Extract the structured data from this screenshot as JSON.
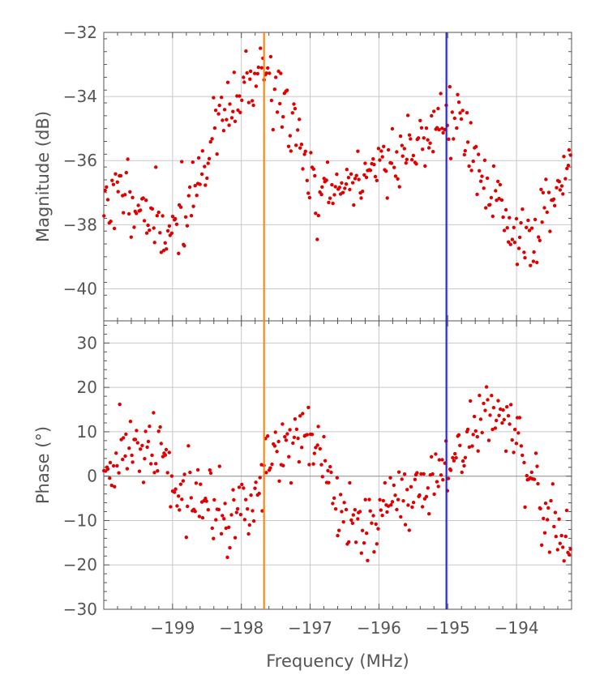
{
  "chart_data": {
    "type": "scatter",
    "xlabel": "Frequency (MHz)",
    "xlim": [
      -200,
      -193.2
    ],
    "x_ticks": [
      -199,
      -198,
      -197,
      -196,
      -195,
      -194
    ],
    "x_tick_labels": [
      "−199",
      "−198",
      "−197",
      "−196",
      "−195",
      "−194"
    ],
    "marker_lines": [
      {
        "x": -197.67,
        "color": "#ff8000"
      },
      {
        "x": -195.02,
        "color": "#2020cc"
      }
    ],
    "point_color": "#e00000",
    "grid": true,
    "panels": [
      {
        "name": "magnitude",
        "ylabel": "Magnitude (dB)",
        "ylim": [
          -41,
          -32
        ],
        "y_ticks": [
          -40,
          -38,
          -36,
          -34,
          -32
        ],
        "y_tick_labels": [
          "−40",
          "−38",
          "−36",
          "−34",
          "−32"
        ],
        "trend": {
          "x": [
            -200,
            -199.6,
            -199.2,
            -198.8,
            -198.4,
            -198.0,
            -197.7,
            -197.4,
            -197.1,
            -196.9,
            -196.5,
            -196.0,
            -195.5,
            -195.2,
            -195.0,
            -194.8,
            -194.5,
            -194.1,
            -193.8,
            -193.5,
            -193.2
          ],
          "y": [
            -37.2,
            -37.0,
            -38.3,
            -37.6,
            -35.2,
            -34.0,
            -33.0,
            -34.2,
            -35.8,
            -37.2,
            -36.8,
            -36.1,
            -35.6,
            -35.0,
            -34.6,
            -34.9,
            -36.5,
            -38.2,
            -38.5,
            -37.2,
            -35.8
          ]
        },
        "spread": 0.55,
        "seed": 11
      },
      {
        "name": "phase",
        "ylabel": "Phase (°)",
        "ylim": [
          -30,
          35
        ],
        "y_ticks": [
          -30,
          -20,
          -10,
          0,
          10,
          20,
          30
        ],
        "y_tick_labels": [
          "−30",
          "−20",
          "−10",
          "0",
          "10",
          "20",
          "30"
        ],
        "trend": {
          "x": [
            -200,
            -199.6,
            -199.2,
            -198.9,
            -198.6,
            -198.2,
            -197.9,
            -197.7,
            -197.4,
            -197.1,
            -196.8,
            -196.5,
            -196.2,
            -196.0,
            -195.6,
            -195.3,
            -195.0,
            -194.7,
            -194.4,
            -194.1,
            -193.8,
            -193.5,
            -193.2
          ],
          "y": [
            2,
            6,
            6,
            -2,
            -6,
            -8,
            -7,
            0,
            7,
            10,
            2,
            -8,
            -12,
            -10,
            -4,
            0,
            2,
            8,
            15,
            10,
            -2,
            -10,
            -15
          ]
        },
        "spread": 4.0,
        "seed": 29
      }
    ]
  }
}
